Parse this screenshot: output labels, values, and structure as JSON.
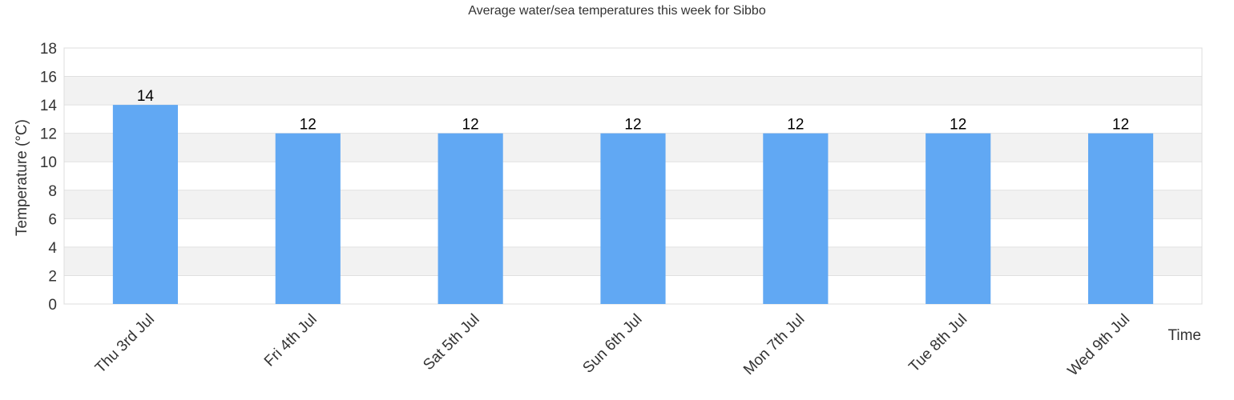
{
  "chart_data": {
    "type": "bar",
    "title": "Average water/sea temperatures this week for Sibbo",
    "xlabel": "Time",
    "ylabel": "Temperature (°C)",
    "categories": [
      "Thu 3rd Jul",
      "Fri 4th Jul",
      "Sat 5th Jul",
      "Sun 6th Jul",
      "Mon 7th Jul",
      "Tue 8th Jul",
      "Wed 9th Jul"
    ],
    "series": [
      {
        "values": [
          14,
          12,
          12,
          12,
          12,
          12,
          12
        ]
      }
    ],
    "data_labels": [
      "14",
      "12",
      "12",
      "12",
      "12",
      "12",
      "12"
    ],
    "ylim": [
      0,
      18
    ],
    "yticks": [
      0,
      2,
      4,
      6,
      8,
      10,
      12,
      14,
      16,
      18
    ],
    "grid": true,
    "alternating_bands": true,
    "legend": "none",
    "colors": {
      "bar": "#61a8f3",
      "band": "#f2f2f2",
      "grid": "#e0e0e0",
      "frame": "#dddddd",
      "text": "#333333"
    }
  }
}
